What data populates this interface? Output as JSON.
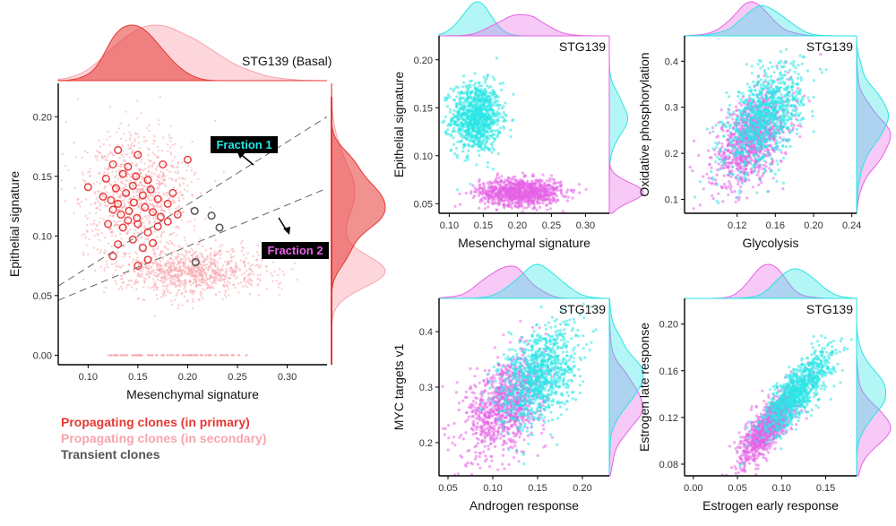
{
  "colors": {
    "propagating_primary": "#e53935",
    "propagating_secondary": "#f8a5ad",
    "transient": "#555555",
    "fraction1": "#29e5e5",
    "fraction2": "#e563e5"
  },
  "legend": {
    "primary": "Propagating clones (in primary)",
    "secondary": "Propagating clones (in secondary)",
    "transient": "Transient clones"
  },
  "chart_data": [
    {
      "id": "main",
      "type": "scatter",
      "title": "STG139 (Basal)",
      "xlabel": "Mesenchymal signature",
      "ylabel": "Epithelial signature",
      "xlim": [
        0.07,
        0.34
      ],
      "ylim": [
        -0.008,
        0.228
      ],
      "xticks": [
        "0.10",
        "0.15",
        "0.20",
        "0.25",
        "0.30"
      ],
      "yticks": [
        "0.00",
        "0.05",
        "0.10",
        "0.15",
        "0.20"
      ],
      "annotations": [
        {
          "label": "Fraction 1",
          "color": "fraction1"
        },
        {
          "label": "Fraction 2",
          "color": "fraction2"
        }
      ],
      "dashed_lines": [
        {
          "x": [
            0.07,
            0.34
          ],
          "y": [
            0.058,
            0.2
          ]
        },
        {
          "x": [
            0.07,
            0.34
          ],
          "y": [
            0.046,
            0.14
          ]
        }
      ],
      "series": [
        {
          "name": "Propagating clones (in secondary)",
          "kind": "cloud",
          "clusters": [
            {
              "cx": 0.15,
              "cy": 0.135,
              "sx": 0.028,
              "sy": 0.025,
              "n": 900
            },
            {
              "cx": 0.205,
              "cy": 0.07,
              "sx": 0.035,
              "sy": 0.01,
              "n": 1000
            }
          ],
          "baseline_y": 0.0
        },
        {
          "name": "Propagating clones (in primary)",
          "points": [
            [
              0.13,
              0.172
            ],
            [
              0.15,
              0.168
            ],
            [
              0.125,
              0.16
            ],
            [
              0.14,
              0.158
            ],
            [
              0.135,
              0.152
            ],
            [
              0.148,
              0.15
            ],
            [
              0.16,
              0.147
            ],
            [
              0.118,
              0.148
            ],
            [
              0.2,
              0.164
            ],
            [
              0.175,
              0.16
            ],
            [
              0.145,
              0.142
            ],
            [
              0.128,
              0.14
            ],
            [
              0.1,
              0.141
            ],
            [
              0.115,
              0.133
            ],
            [
              0.123,
              0.13
            ],
            [
              0.13,
              0.127
            ],
            [
              0.138,
              0.136
            ],
            [
              0.146,
              0.128
            ],
            [
              0.155,
              0.134
            ],
            [
              0.163,
              0.139
            ],
            [
              0.17,
              0.131
            ],
            [
              0.18,
              0.127
            ],
            [
              0.185,
              0.136
            ],
            [
              0.125,
              0.122
            ],
            [
              0.133,
              0.118
            ],
            [
              0.141,
              0.121
            ],
            [
              0.149,
              0.115
            ],
            [
              0.157,
              0.124
            ],
            [
              0.165,
              0.12
            ],
            [
              0.173,
              0.116
            ],
            [
              0.19,
              0.118
            ],
            [
              0.12,
              0.11
            ],
            [
              0.135,
              0.107
            ],
            [
              0.15,
              0.11
            ],
            [
              0.16,
              0.103
            ],
            [
              0.17,
              0.108
            ],
            [
              0.145,
              0.097
            ],
            [
              0.155,
              0.09
            ],
            [
              0.13,
              0.093
            ],
            [
              0.165,
              0.094
            ],
            [
              0.125,
              0.083
            ],
            [
              0.16,
              0.08
            ],
            [
              0.15,
              0.075
            ],
            [
              0.18,
              0.112
            ],
            [
              0.14,
              0.113
            ]
          ]
        },
        {
          "name": "Transient clones",
          "points": [
            [
              0.207,
              0.121
            ],
            [
              0.224,
              0.117
            ],
            [
              0.232,
              0.107
            ],
            [
              0.208,
              0.078
            ]
          ]
        }
      ]
    },
    {
      "id": "p1",
      "type": "scatter",
      "title": "STG139",
      "xlabel": "Mesenchymal signature",
      "ylabel": "Epithelial signature",
      "xlim": [
        0.085,
        0.335
      ],
      "ylim": [
        0.04,
        0.225
      ],
      "xticks": [
        "0.10",
        "0.15",
        "0.20",
        "0.25",
        "0.30"
      ],
      "yticks": [
        "0.05",
        "0.10",
        "0.15",
        "0.20"
      ],
      "series": [
        {
          "name": "Fraction 1",
          "cx": 0.14,
          "cy": 0.14,
          "sx": 0.018,
          "sy": 0.018,
          "rho": 0.0,
          "n": 1000
        },
        {
          "name": "Fraction 2",
          "cx": 0.205,
          "cy": 0.062,
          "sx": 0.03,
          "sy": 0.007,
          "rho": 0.0,
          "n": 1000
        }
      ]
    },
    {
      "id": "p2",
      "type": "scatter",
      "title": "STG139",
      "xlabel": "Glycolysis",
      "ylabel": "Oxidative phosphorylation",
      "xlim": [
        0.065,
        0.245
      ],
      "ylim": [
        0.07,
        0.455
      ],
      "xticks": [
        "0.12",
        "0.16",
        "0.20",
        "0.24"
      ],
      "yticks": [
        "0.1",
        "0.2",
        "0.3",
        "0.4"
      ],
      "series": [
        {
          "name": "Fraction 2",
          "cx": 0.135,
          "cy": 0.23,
          "sx": 0.02,
          "sy": 0.05,
          "rho": 0.5,
          "n": 1000
        },
        {
          "name": "Fraction 1",
          "cx": 0.148,
          "cy": 0.275,
          "sx": 0.02,
          "sy": 0.055,
          "rho": 0.5,
          "n": 1000
        }
      ]
    },
    {
      "id": "p3",
      "type": "scatter",
      "title": "STG139",
      "xlabel": "Androgen response",
      "ylabel": "MYC targets v1",
      "xlim": [
        0.04,
        0.23
      ],
      "ylim": [
        0.14,
        0.46
      ],
      "xticks": [
        "0.05",
        "0.10",
        "0.15",
        "0.20"
      ],
      "yticks": [
        "0.2",
        "0.3",
        "0.4"
      ],
      "series": [
        {
          "name": "Fraction 2",
          "cx": 0.115,
          "cy": 0.27,
          "sx": 0.022,
          "sy": 0.045,
          "rho": 0.4,
          "n": 1000
        },
        {
          "name": "Fraction 1",
          "cx": 0.15,
          "cy": 0.32,
          "sx": 0.022,
          "sy": 0.045,
          "rho": 0.4,
          "n": 1000
        }
      ]
    },
    {
      "id": "p4",
      "type": "scatter",
      "title": "STG139",
      "xlabel": "Estrogen early response",
      "ylabel": "Estrogen late response",
      "xlim": [
        -0.01,
        0.185
      ],
      "ylim": [
        0.07,
        0.222
      ],
      "xticks": [
        "0.00",
        "0.05",
        "0.10",
        "0.15"
      ],
      "yticks": [
        "0.08",
        "0.12",
        "0.16",
        "0.20"
      ],
      "series": [
        {
          "name": "Fraction 2",
          "cx": 0.085,
          "cy": 0.112,
          "sx": 0.016,
          "sy": 0.016,
          "rho": 0.8,
          "n": 1000
        },
        {
          "name": "Fraction 1",
          "cx": 0.118,
          "cy": 0.142,
          "sx": 0.02,
          "sy": 0.018,
          "rho": 0.8,
          "n": 1000
        }
      ]
    }
  ]
}
